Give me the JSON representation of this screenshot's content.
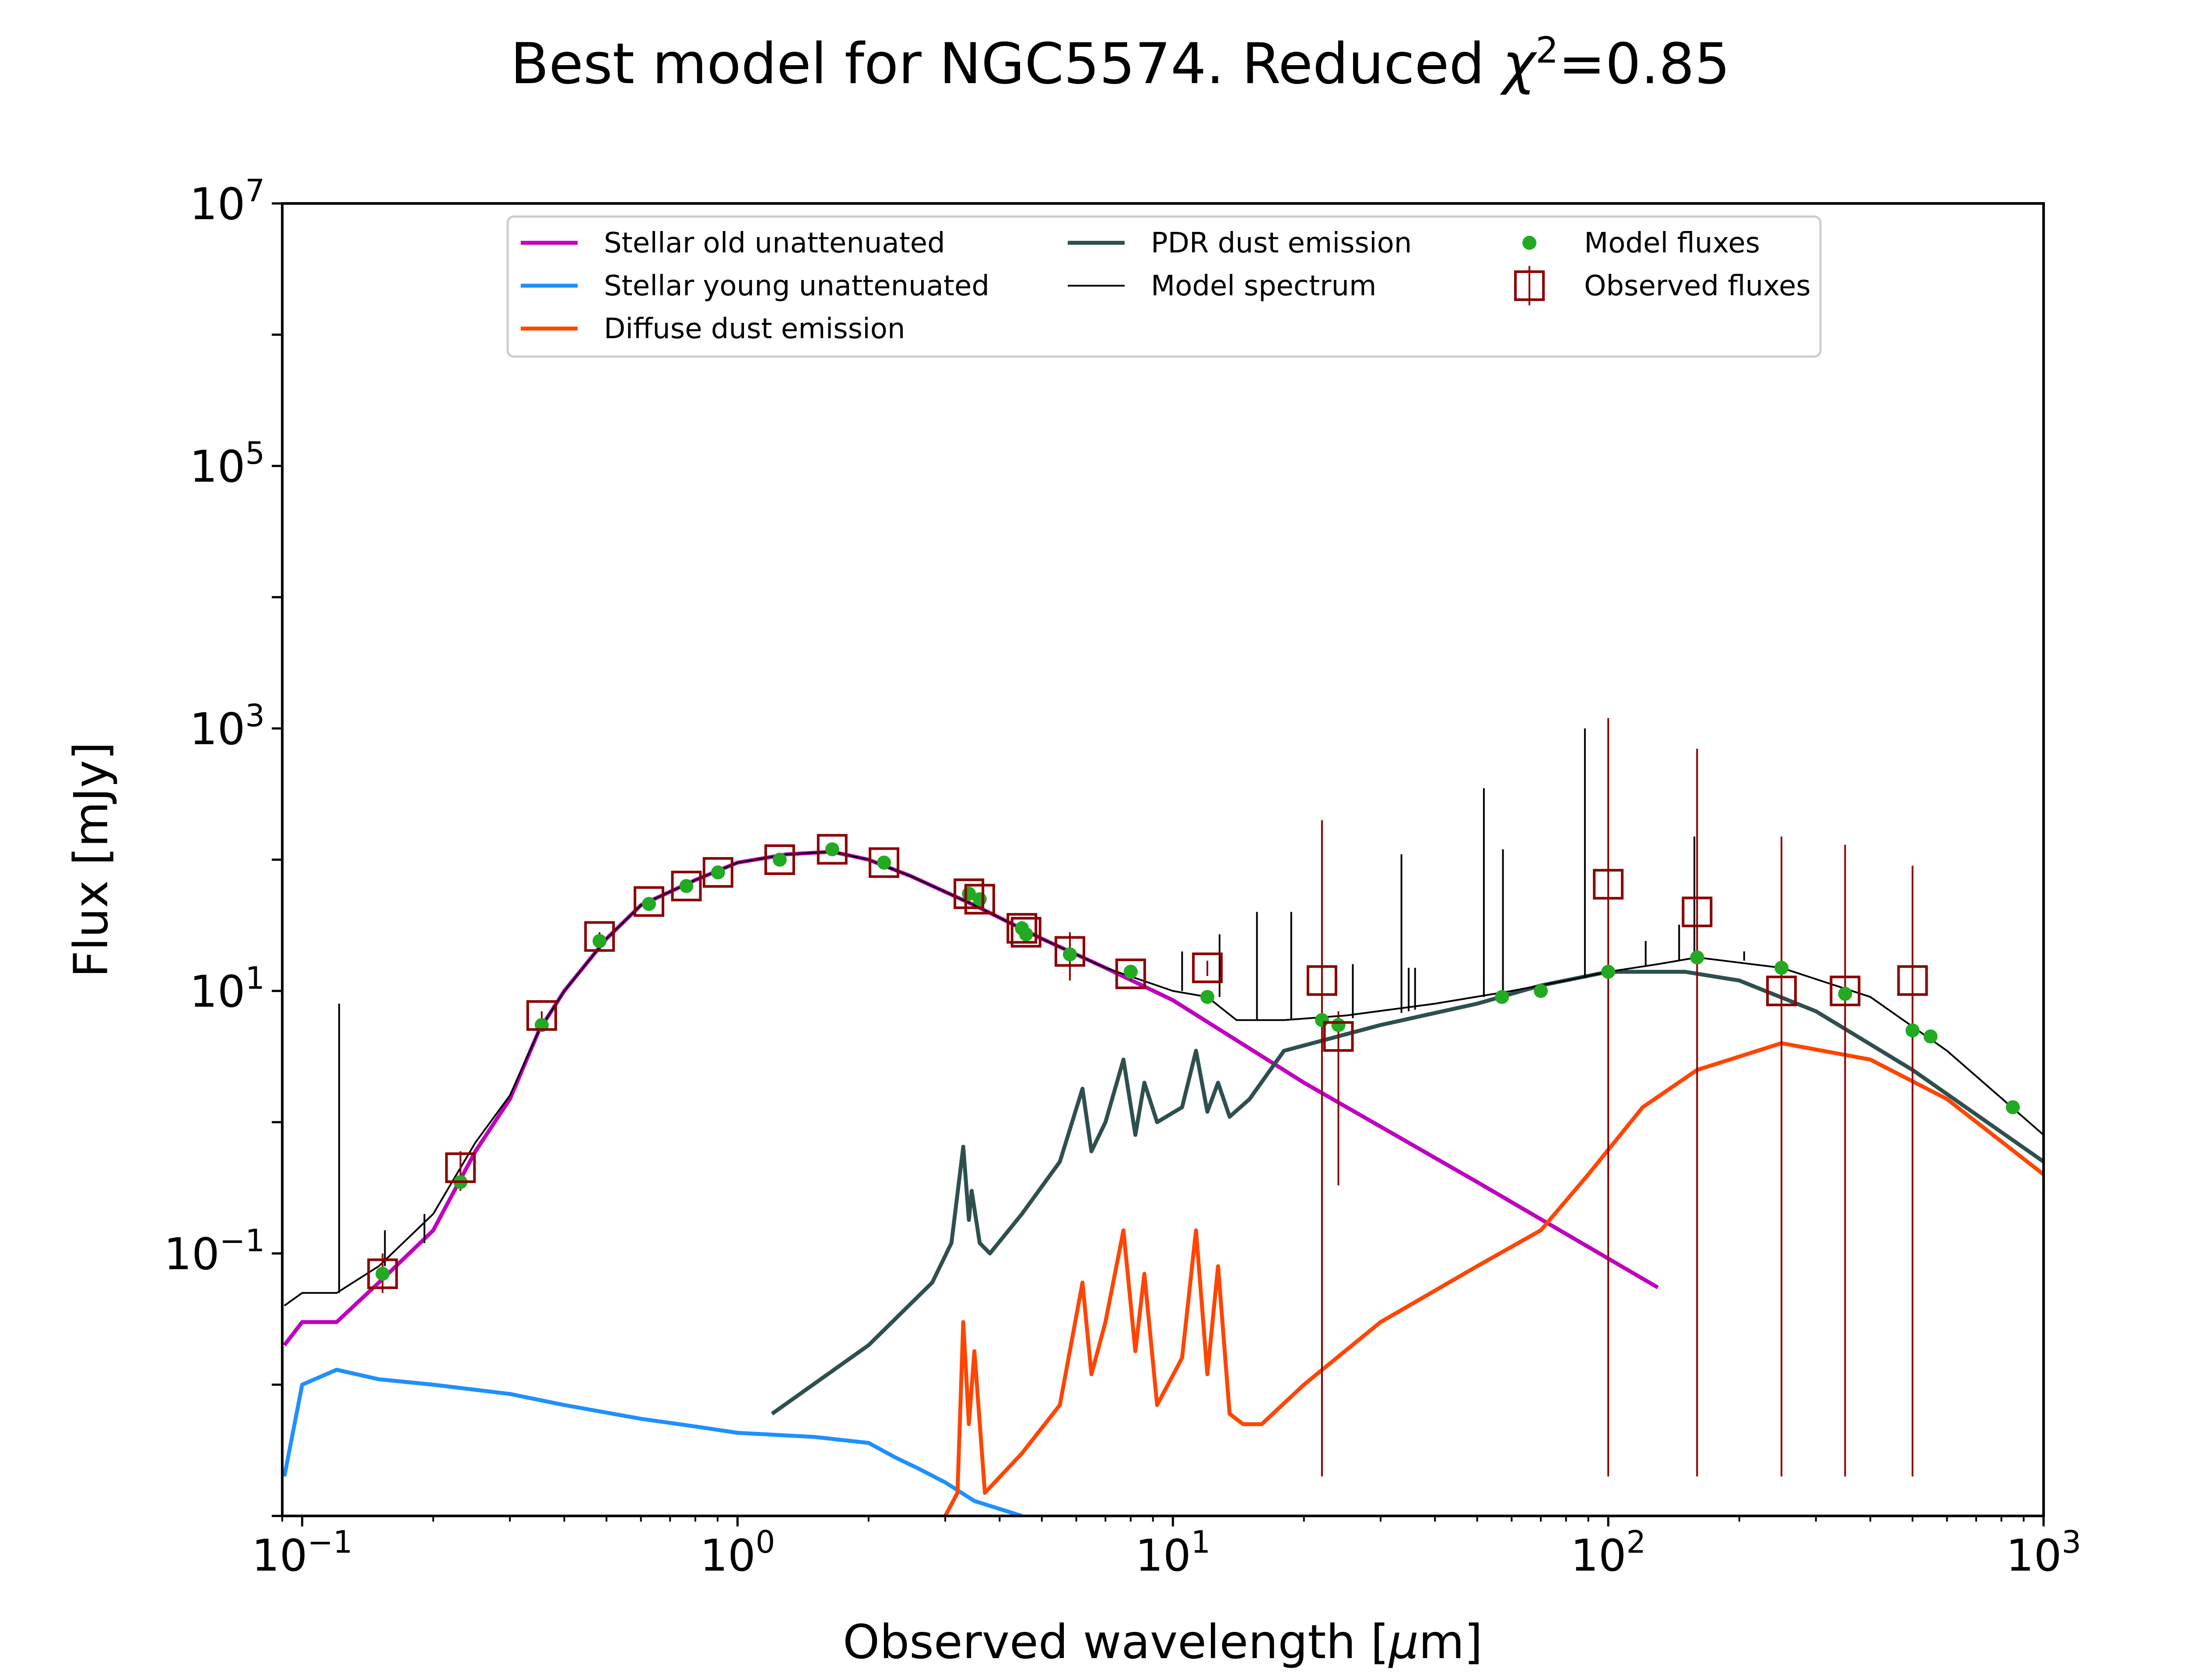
{
  "chart_data": {
    "type": "line",
    "title_main": "Best model for NGC5574. Reduced ",
    "title_chi": "χ",
    "title_chi_exp": "2",
    "title_value": "=0.85",
    "xlabel_pre": "Observed wavelength [",
    "xlabel_mu": "μ",
    "xlabel_post": "m]",
    "ylabel": "Flux [mJy]",
    "xscale": "log",
    "yscale": "log",
    "xlim": [
      0.09,
      1000
    ],
    "ylim": [
      0.001,
      10000000
    ],
    "legend_position": "upper center",
    "x_ticks": [
      {
        "value": 0.1,
        "base": "10",
        "exp": "−1"
      },
      {
        "value": 1,
        "base": "10",
        "exp": "0"
      },
      {
        "value": 10,
        "base": "10",
        "exp": "1"
      },
      {
        "value": 100,
        "base": "10",
        "exp": "2"
      },
      {
        "value": 1000,
        "base": "10",
        "exp": "3"
      }
    ],
    "y_ticks": [
      {
        "value": 0.1,
        "base": "10",
        "exp": "−1"
      },
      {
        "value": 10,
        "base": "10",
        "exp": "1"
      },
      {
        "value": 1000,
        "base": "10",
        "exp": "3"
      },
      {
        "value": 100000,
        "base": "10",
        "exp": "5"
      },
      {
        "value": 10000000,
        "base": "10",
        "exp": "7"
      }
    ],
    "series": [
      {
        "name": "Stellar old unattenuated",
        "color": "#bf00bf",
        "kind": "line",
        "x": [
          0.091,
          0.1,
          0.12,
          0.15,
          0.2,
          0.25,
          0.3,
          0.35,
          0.4,
          0.5,
          0.6,
          0.8,
          1.0,
          1.3,
          1.65,
          2.0,
          2.5,
          3.5,
          5,
          7,
          10,
          20,
          50,
          130
        ],
        "y": [
          0.02,
          0.03,
          0.03,
          0.06,
          0.15,
          0.6,
          1.5,
          5,
          10,
          25,
          45,
          70,
          95,
          110,
          115,
          100,
          75,
          45,
          25,
          15,
          8.5,
          2.0,
          0.35,
          0.055
        ]
      },
      {
        "name": "Stellar young unattenuated",
        "color": "#1e90ff",
        "kind": "line",
        "x": [
          0.091,
          0.1,
          0.12,
          0.15,
          0.2,
          0.3,
          0.4,
          0.6,
          0.8,
          1.0,
          1.5,
          2.0,
          2.3,
          2.6,
          3.0,
          3.5,
          4.5
        ],
        "y": [
          0.002,
          0.01,
          0.013,
          0.011,
          0.01,
          0.0085,
          0.007,
          0.0055,
          0.0048,
          0.0043,
          0.004,
          0.0036,
          0.0028,
          0.0023,
          0.0018,
          0.0013,
          0.001
        ]
      },
      {
        "name": "Diffuse dust emission",
        "color": "#ff4500",
        "kind": "line",
        "x": [
          3.0,
          3.2,
          3.3,
          3.4,
          3.5,
          3.7,
          4.5,
          5.5,
          6.2,
          6.5,
          7.0,
          7.7,
          8.2,
          8.6,
          9.2,
          10.5,
          11.3,
          12.0,
          12.7,
          13.5,
          14.5,
          16,
          20,
          30,
          50,
          70,
          90,
          120,
          160,
          250,
          400,
          600,
          1000
        ],
        "y": [
          0.001,
          0.0015,
          0.03,
          0.005,
          0.018,
          0.0015,
          0.003,
          0.007,
          0.06,
          0.012,
          0.03,
          0.15,
          0.018,
          0.07,
          0.007,
          0.016,
          0.15,
          0.012,
          0.08,
          0.006,
          0.005,
          0.005,
          0.01,
          0.03,
          0.08,
          0.15,
          0.4,
          1.3,
          2.5,
          4.0,
          3.0,
          1.5,
          0.4
        ]
      },
      {
        "name": "PDR dust emission",
        "color": "#2f4f4f",
        "kind": "line",
        "x": [
          1.2,
          2.0,
          2.8,
          3.1,
          3.3,
          3.4,
          3.45,
          3.6,
          3.8,
          4.5,
          5.5,
          6.2,
          6.5,
          7.0,
          7.7,
          8.2,
          8.6,
          9.2,
          10.5,
          11.3,
          12.0,
          12.7,
          13.5,
          15,
          18,
          30,
          50,
          70,
          100,
          150,
          200,
          300,
          500,
          1000
        ],
        "y": [
          0.006,
          0.02,
          0.06,
          0.12,
          0.65,
          0.18,
          0.3,
          0.12,
          0.1,
          0.2,
          0.5,
          1.8,
          0.6,
          1.0,
          3.0,
          0.8,
          2.0,
          1.0,
          1.3,
          3.5,
          1.2,
          2.0,
          1.1,
          1.5,
          3.5,
          5.5,
          8,
          11,
          14,
          14,
          12,
          7,
          2.5,
          0.5
        ]
      },
      {
        "name": "Model spectrum",
        "color": "#000000",
        "kind": "line",
        "x": [
          0.091,
          0.1,
          0.12,
          0.15,
          0.2,
          0.25,
          0.3,
          0.35,
          0.4,
          0.5,
          0.6,
          0.8,
          1.0,
          1.3,
          1.65,
          2.0,
          2.5,
          3.5,
          5,
          7,
          10,
          12,
          14,
          18,
          25,
          40,
          60,
          80,
          100,
          130,
          160,
          250,
          400,
          600,
          1000
        ],
        "y": [
          0.04,
          0.05,
          0.05,
          0.08,
          0.2,
          0.7,
          1.6,
          5,
          10,
          25,
          45,
          70,
          95,
          110,
          115,
          100,
          75,
          45,
          25,
          15,
          10,
          9,
          6,
          6,
          6.5,
          8,
          10,
          12,
          14,
          16,
          18,
          15,
          9,
          3.5,
          0.8
        ]
      },
      {
        "name": "Model fluxes",
        "color": "#22aa22",
        "kind": "points",
        "x": [
          0.153,
          0.231,
          0.355,
          0.482,
          0.626,
          0.763,
          0.902,
          1.25,
          1.65,
          2.17,
          3.4,
          3.6,
          4.5,
          4.6,
          5.8,
          8.0,
          12,
          22,
          24,
          57,
          70,
          100,
          160,
          250,
          350,
          500,
          550,
          850
        ],
        "y": [
          0.07,
          0.35,
          5.5,
          24,
          46,
          63,
          80,
          100,
          120,
          95,
          55,
          50,
          30,
          27,
          19,
          14,
          9,
          6,
          5.5,
          9,
          10,
          14,
          18,
          15,
          9.5,
          5,
          4.5,
          1.3
        ]
      },
      {
        "name": "Observed fluxes",
        "color": "#8b0000",
        "kind": "squares",
        "x": [
          0.153,
          0.231,
          0.355,
          0.482,
          0.626,
          0.763,
          0.902,
          1.25,
          1.65,
          2.17,
          3.4,
          3.6,
          4.5,
          4.6,
          5.8,
          8.0,
          12,
          22,
          24,
          100,
          160,
          250,
          350,
          500
        ],
        "y": [
          0.07,
          0.45,
          6.5,
          26,
          48,
          63,
          80,
          100,
          120,
          95,
          55,
          50,
          30,
          28,
          20,
          13.5,
          15,
          12,
          4.5,
          65,
          40,
          10,
          10,
          12
        ],
        "err_low": [
          0.05,
          0.3,
          6.0,
          24,
          45,
          60,
          76,
          96,
          115,
          90,
          52,
          47,
          26,
          25,
          12,
          12,
          13,
          0.002,
          0.33,
          0.002,
          0.002,
          0.002,
          0.002,
          0.002
        ],
        "err_high": [
          0.1,
          0.6,
          7.0,
          28,
          51,
          66,
          84,
          104,
          125,
          100,
          58,
          53,
          34,
          31,
          28,
          15,
          17,
          200,
          7,
          1200,
          700,
          150,
          130,
          90
        ]
      }
    ],
    "emission_lines": [
      {
        "x": 0.1216,
        "base": 0.05,
        "top": 8
      },
      {
        "x": 0.1549,
        "base": 0.08,
        "top": 0.15
      },
      {
        "x": 0.1909,
        "base": 0.12,
        "top": 0.2
      },
      {
        "x": 10.5,
        "base": 10,
        "top": 20
      },
      {
        "x": 12.8,
        "base": 9,
        "top": 27
      },
      {
        "x": 15.6,
        "base": 6,
        "top": 40
      },
      {
        "x": 18.7,
        "base": 6,
        "top": 40
      },
      {
        "x": 25.9,
        "base": 6.2,
        "top": 16
      },
      {
        "x": 33.5,
        "base": 6.8,
        "top": 110
      },
      {
        "x": 34.8,
        "base": 7,
        "top": 15
      },
      {
        "x": 36,
        "base": 7.2,
        "top": 15
      },
      {
        "x": 51.8,
        "base": 9,
        "top": 350
      },
      {
        "x": 57.3,
        "base": 9.5,
        "top": 120
      },
      {
        "x": 88.4,
        "base": 12.5,
        "top": 1000
      },
      {
        "x": 121.9,
        "base": 15.5,
        "top": 24
      },
      {
        "x": 145.5,
        "base": 17,
        "top": 32
      },
      {
        "x": 157.7,
        "base": 17.5,
        "top": 150
      },
      {
        "x": 205.2,
        "base": 17,
        "top": 20
      }
    ]
  }
}
